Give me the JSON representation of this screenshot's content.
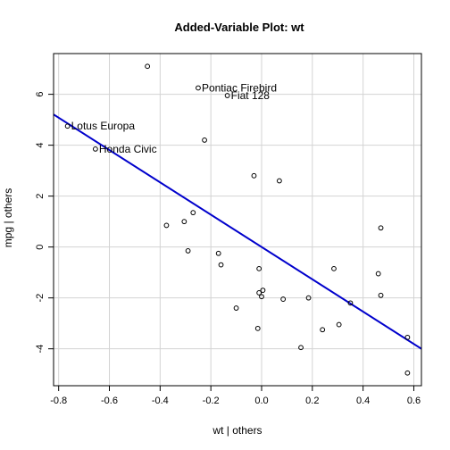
{
  "chart_data": {
    "type": "scatter",
    "title": "Added-Variable Plot: wt",
    "xlabel": "wt | others",
    "ylabel": "mpg | others",
    "xlim": [
      -0.82,
      0.63
    ],
    "ylim": [
      -5.45,
      7.6
    ],
    "xticks": [
      -0.8,
      -0.6,
      -0.4,
      -0.2,
      0.0,
      0.2,
      0.4,
      0.6
    ],
    "xtick_labels": [
      "-0.8",
      "-0.6",
      "-0.4",
      "-0.2",
      "0.0",
      "0.2",
      "0.4",
      "0.6"
    ],
    "yticks": [
      -4,
      -2,
      0,
      2,
      4,
      6
    ],
    "ytick_labels": [
      "-4",
      "-2",
      "0",
      "2",
      "4",
      "6"
    ],
    "grid": true,
    "points": [
      {
        "x": -0.45,
        "y": 7.1
      },
      {
        "x": -0.25,
        "y": 6.25,
        "label": "Pontiac Firebird"
      },
      {
        "x": -0.135,
        "y": 5.95,
        "label": "Fiat 128"
      },
      {
        "x": -0.765,
        "y": 4.75,
        "label": "Lotus Europa"
      },
      {
        "x": -0.655,
        "y": 3.85,
        "label": "Honda Civic"
      },
      {
        "x": -0.225,
        "y": 4.2
      },
      {
        "x": -0.03,
        "y": 2.8
      },
      {
        "x": 0.07,
        "y": 2.6
      },
      {
        "x": -0.27,
        "y": 1.35
      },
      {
        "x": -0.305,
        "y": 1.0
      },
      {
        "x": -0.375,
        "y": 0.85
      },
      {
        "x": 0.47,
        "y": 0.75
      },
      {
        "x": -0.29,
        "y": -0.15
      },
      {
        "x": -0.17,
        "y": -0.25
      },
      {
        "x": -0.16,
        "y": -0.7
      },
      {
        "x": -0.01,
        "y": -0.85
      },
      {
        "x": 0.285,
        "y": -0.85
      },
      {
        "x": 0.46,
        "y": -1.05
      },
      {
        "x": 0.005,
        "y": -1.7
      },
      {
        "x": -0.01,
        "y": -1.8
      },
      {
        "x": 0.0,
        "y": -1.95
      },
      {
        "x": 0.185,
        "y": -2.0
      },
      {
        "x": 0.085,
        "y": -2.05
      },
      {
        "x": 0.47,
        "y": -1.9
      },
      {
        "x": -0.1,
        "y": -2.4
      },
      {
        "x": 0.35,
        "y": -2.2
      },
      {
        "x": 0.305,
        "y": -3.05
      },
      {
        "x": -0.015,
        "y": -3.2
      },
      {
        "x": 0.24,
        "y": -3.25
      },
      {
        "x": 0.155,
        "y": -3.95
      },
      {
        "x": 0.575,
        "y": -3.55
      },
      {
        "x": 0.575,
        "y": -4.95
      }
    ],
    "fit_line": {
      "slope": -6.35,
      "intercept": 0.0,
      "color": "#0000cc"
    },
    "colors": {
      "points": "#000000",
      "grid": "#d3d3d3",
      "box": "#000000"
    }
  }
}
